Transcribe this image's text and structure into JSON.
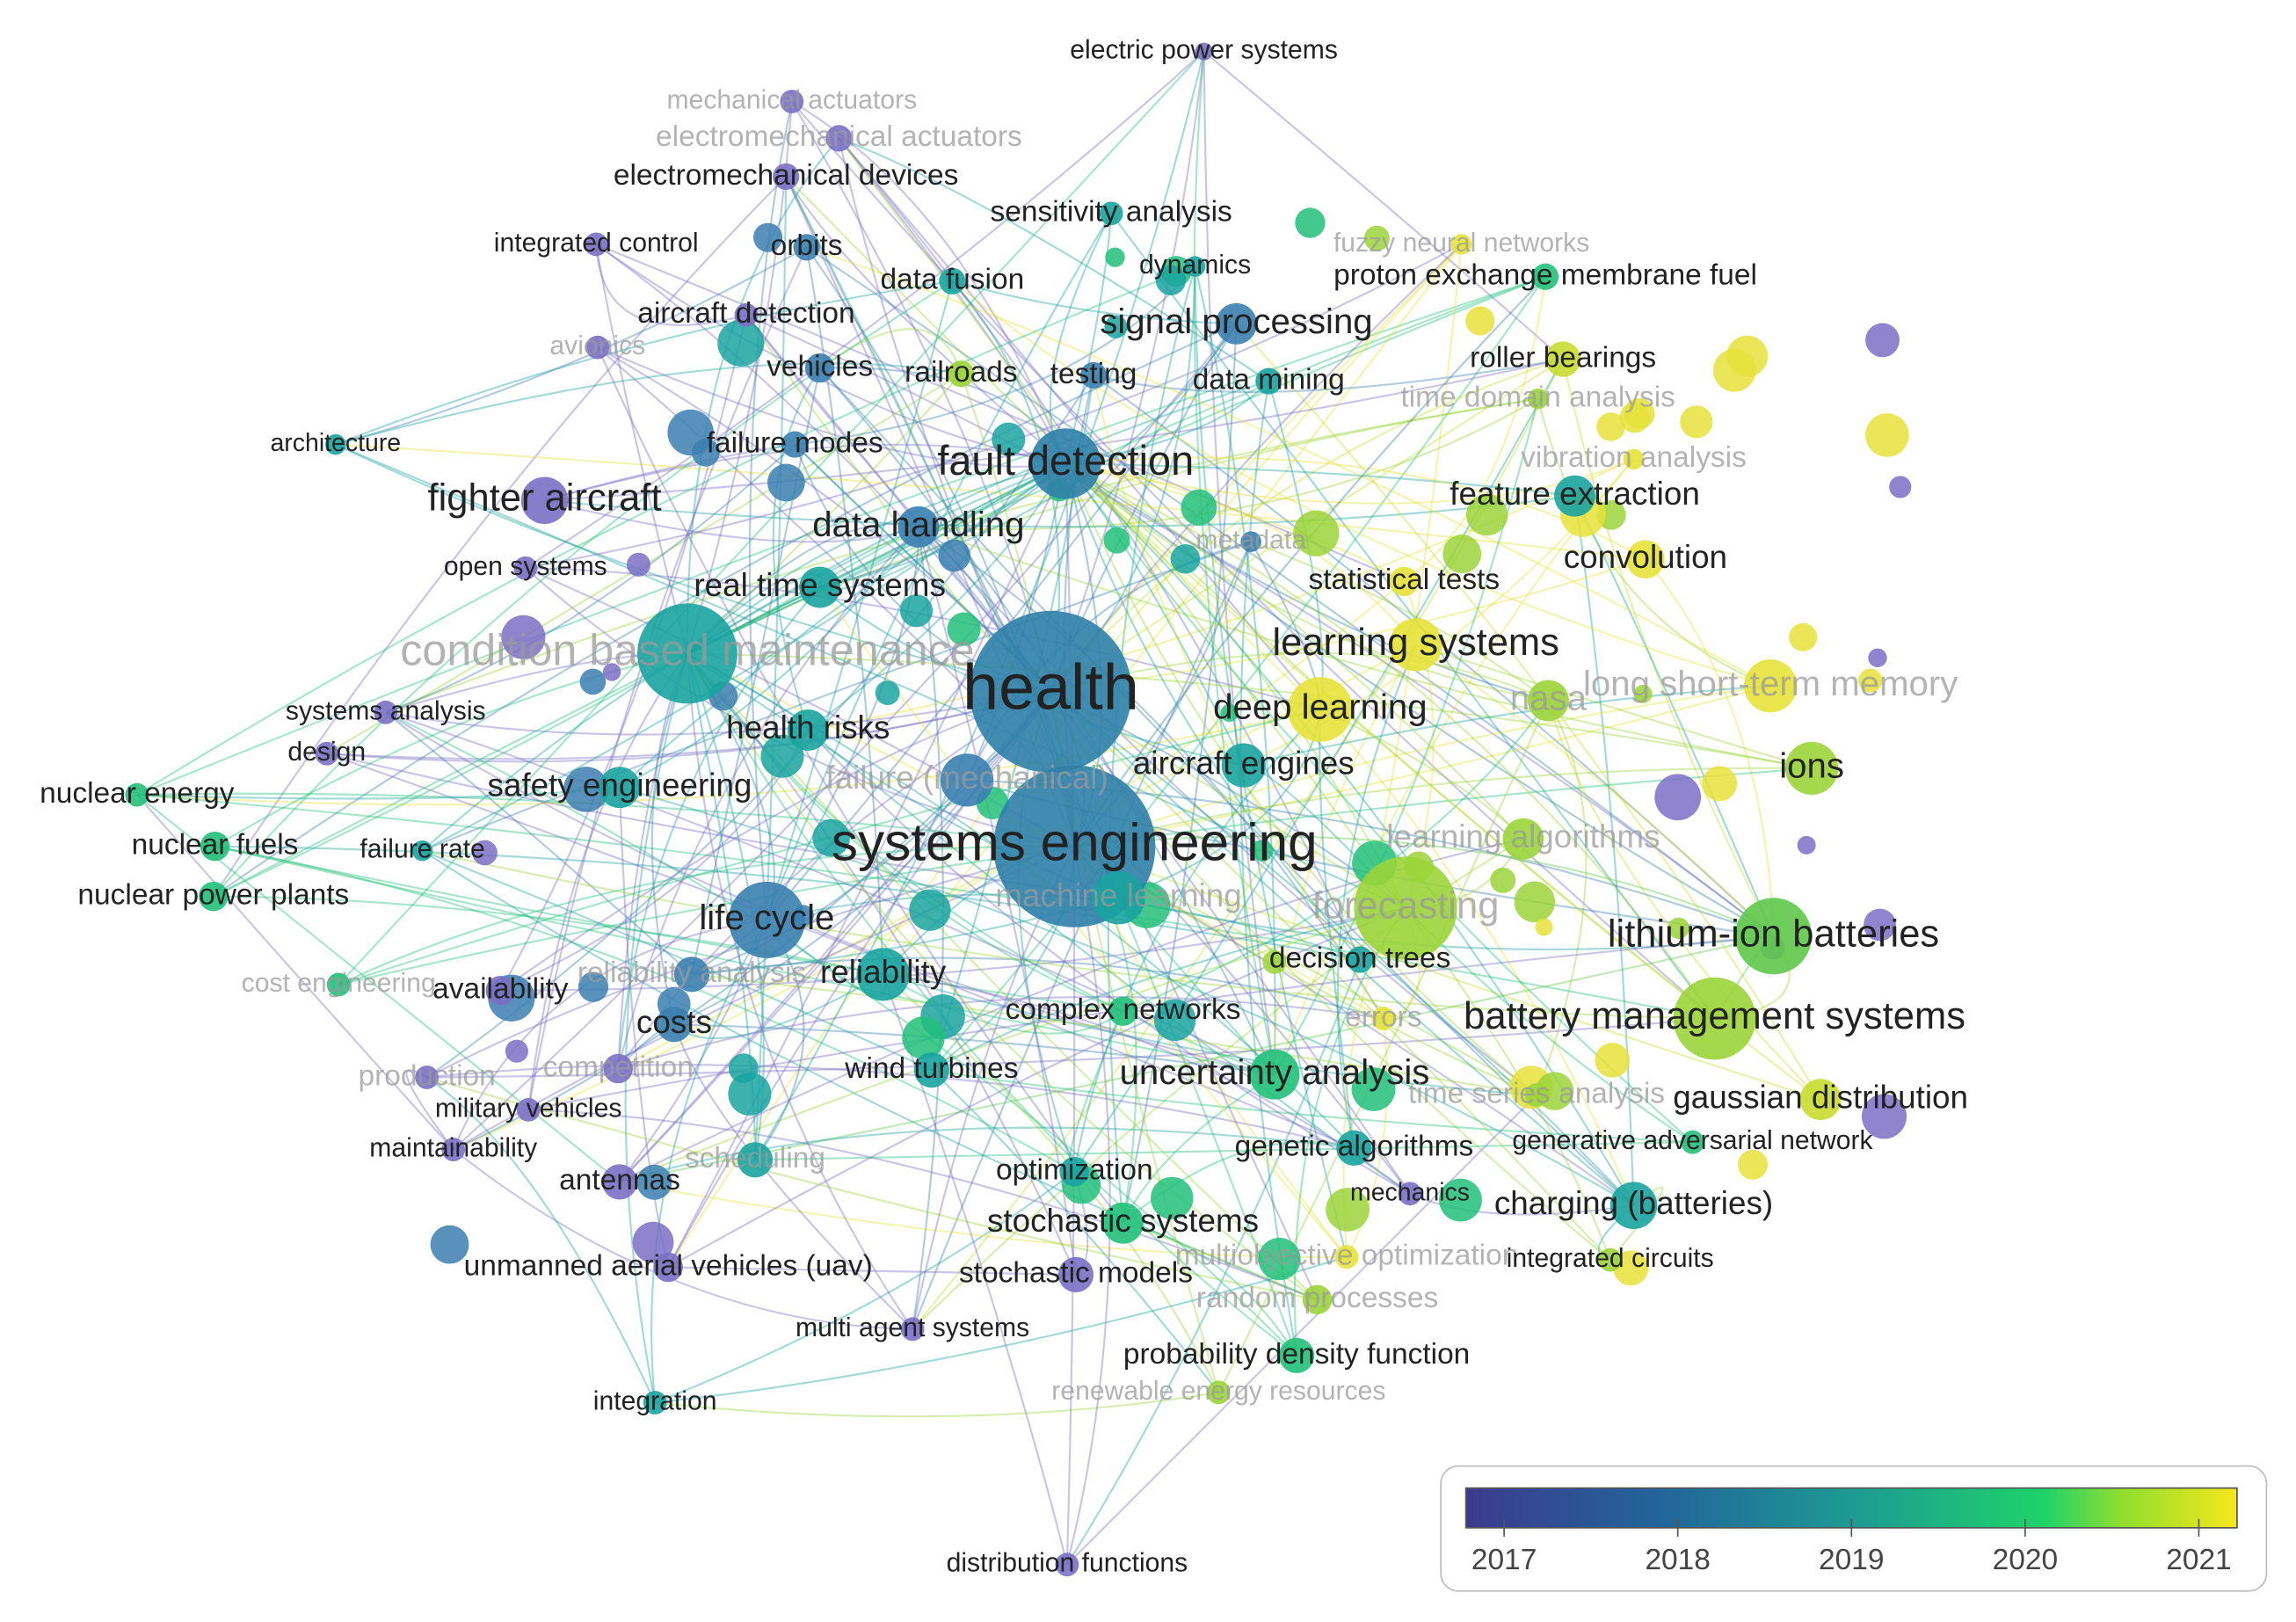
{
  "nodes": [
    {
      "label": "electric power systems",
      "color": "#7b6fc4"
    },
    {
      "label": "mechanical actuators",
      "color": "#7b6fc4"
    },
    {
      "label": "electromechanical actuators",
      "color": "#7b6fc4"
    },
    {
      "label": "electromechanical devices",
      "color": "#7b6fc4"
    },
    {
      "label": "integrated control",
      "color": "#7b6fc4"
    },
    {
      "label": "orbits",
      "color": "#3b7fb0"
    },
    {
      "label": "sensitivity analysis",
      "color": "#1aa3a0"
    },
    {
      "label": "data fusion",
      "color": "#1aa3a0"
    },
    {
      "label": "dynamics",
      "color": "#1aa3a0"
    },
    {
      "label": "proton exchange membrane fuel",
      "color": "#22c07a"
    },
    {
      "label": "fuzzy neural networks",
      "color": "#e6e23a"
    },
    {
      "label": "aircraft detection",
      "color": "#7b6fc4"
    },
    {
      "label": "avionics",
      "color": "#7b6fc4"
    },
    {
      "label": "signal processing",
      "color": "#3b7fb0"
    },
    {
      "label": "vehicles",
      "color": "#3b7fb0"
    },
    {
      "label": "railroads",
      "color": "#9bd43a"
    },
    {
      "label": "testing",
      "color": "#3b7fb0"
    },
    {
      "label": "data mining",
      "color": "#1aa3a0"
    },
    {
      "label": "roller bearings",
      "color": "#c8dc30"
    },
    {
      "label": "time domain analysis",
      "color": "#9bd43a"
    },
    {
      "label": "architecture",
      "color": "#1aa3a0"
    },
    {
      "label": "failure modes",
      "color": "#3b7fb0"
    },
    {
      "label": "fault detection",
      "color": "#2f7fa8"
    },
    {
      "label": "vibration analysis",
      "color": "#e6e23a"
    },
    {
      "label": "fighter aircraft",
      "color": "#7b6fc4"
    },
    {
      "label": "feature extraction",
      "color": "#1aa3a0"
    },
    {
      "label": "open systems",
      "color": "#7b6fc4"
    },
    {
      "label": "data handling",
      "color": "#3b7fb0"
    },
    {
      "label": "metadata",
      "color": "#3b7fb0"
    },
    {
      "label": "convolution",
      "color": "#e6e23a"
    },
    {
      "label": "statistical tests",
      "color": "#e6e23a"
    },
    {
      "label": "real time systems",
      "color": "#1aa3a0"
    },
    {
      "label": "condition based maintenance",
      "color": "#1aa3a0"
    },
    {
      "label": "health",
      "color": "#2f7fa8"
    },
    {
      "label": "learning systems",
      "color": "#e6e23a"
    },
    {
      "label": "long short-term memory",
      "color": "#e6e23a"
    },
    {
      "label": "nasa",
      "color": "#9bd43a"
    },
    {
      "label": "systems analysis",
      "color": "#7b6fc4"
    },
    {
      "label": "deep learning",
      "color": "#e6e23a"
    },
    {
      "label": "health risks",
      "color": "#1aa3a0"
    },
    {
      "label": "design",
      "color": "#7b6fc4"
    },
    {
      "label": "ions",
      "color": "#9bd43a"
    },
    {
      "label": "failure (mechanical)",
      "color": "#3b7fb0"
    },
    {
      "label": "aircraft engines",
      "color": "#1aa3a0"
    },
    {
      "label": "nuclear energy",
      "color": "#22c07a"
    },
    {
      "label": "safety engineering",
      "color": "#1aa3a0"
    },
    {
      "label": "systems engineering",
      "color": "#2f7fa8"
    },
    {
      "label": "learning algorithms",
      "color": "#9bd43a"
    },
    {
      "label": "nuclear fuels",
      "color": "#22c07a"
    },
    {
      "label": "failure rate",
      "color": "#1aa3a0"
    },
    {
      "label": "nuclear power plants",
      "color": "#22c07a"
    },
    {
      "label": "machine learning",
      "color": "#1aa3a0"
    },
    {
      "label": "forecasting",
      "color": "#9bd43a"
    },
    {
      "label": "life cycle",
      "color": "#3b7fb0"
    },
    {
      "label": "lithium-ion batteries",
      "color": "#5fc84a"
    },
    {
      "label": "reliability",
      "color": "#1aa3a0"
    },
    {
      "label": "reliability analysis",
      "color": "#3b7fb0"
    },
    {
      "label": "decision trees",
      "color": "#1aa3a0"
    },
    {
      "label": "availability",
      "color": "#7b6fc4"
    },
    {
      "label": "cost engineering",
      "color": "#22c07a"
    },
    {
      "label": "costs",
      "color": "#3b7fb0"
    },
    {
      "label": "complex networks",
      "color": "#22c07a"
    },
    {
      "label": "errors",
      "color": "#e6e23a"
    },
    {
      "label": "battery management systems",
      "color": "#9bd43a"
    },
    {
      "label": "competition",
      "color": "#7b6fc4"
    },
    {
      "label": "production",
      "color": "#7b6fc4"
    },
    {
      "label": "wind turbines",
      "color": "#1aa3a0"
    },
    {
      "label": "uncertainty analysis",
      "color": "#22c07a"
    },
    {
      "label": "military vehicles",
      "color": "#7b6fc4"
    },
    {
      "label": "time series analysis",
      "color": "#9bd43a"
    },
    {
      "label": "gaussian distribution",
      "color": "#c8dc30"
    },
    {
      "label": "generative adversarial network",
      "color": "#22c07a"
    },
    {
      "label": "maintainability",
      "color": "#7b6fc4"
    },
    {
      "label": "genetic algorithms",
      "color": "#1aa3a0"
    },
    {
      "label": "scheduling",
      "color": "#1aa3a0"
    },
    {
      "label": "antennas",
      "color": "#7b6fc4"
    },
    {
      "label": "optimization",
      "color": "#1aa3a0"
    },
    {
      "label": "mechanics",
      "color": "#7b6fc4"
    },
    {
      "label": "charging (batteries)",
      "color": "#1aa3a0"
    },
    {
      "label": "stochastic systems",
      "color": "#22c07a"
    },
    {
      "label": "multiobjective optimization",
      "color": "#e6e23a"
    },
    {
      "label": "integrated circuits",
      "color": "#9bd43a"
    },
    {
      "label": "unmanned aerial vehicles (uav)",
      "color": "#7b6fc4"
    },
    {
      "label": "stochastic models",
      "color": "#7b6fc4"
    },
    {
      "label": "random processes",
      "color": "#9bd43a"
    },
    {
      "label": "multi agent systems",
      "color": "#7b6fc4"
    },
    {
      "label": "probability density function",
      "color": "#22c07a"
    },
    {
      "label": "renewable energy resources",
      "color": "#9bd43a"
    },
    {
      "label": "integration",
      "color": "#1aa3a0"
    },
    {
      "label": "distribution functions",
      "color": "#7b6fc4"
    }
  ],
  "colorbar": {
    "lim": [
      2016.78,
      2021.22
    ],
    "ticks": [
      2017,
      2018,
      2019,
      2020,
      2021
    ]
  }
}
